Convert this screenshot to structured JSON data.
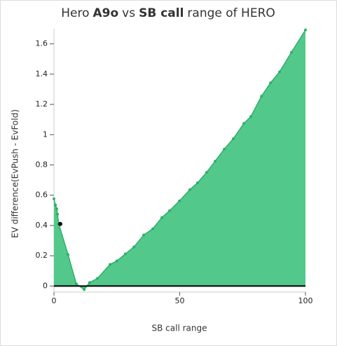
{
  "chart_data": {
    "type": "area",
    "title": [
      "Hero",
      "A9o",
      "vs",
      "SB call",
      "range of HERO"
    ],
    "title_bold": [
      false,
      true,
      false,
      true,
      false
    ],
    "x_label": "SB call range",
    "y_label": "EV difference(EvPush - EvFold)",
    "x": [
      0,
      0.6,
      1.1,
      1.4,
      1.9,
      5.6,
      8.9,
      12,
      14.2,
      17.3,
      22.3,
      25,
      28.4,
      31.8,
      35.7,
      39.3,
      42.9,
      46,
      49.9,
      54,
      57.1,
      60.7,
      64.1,
      67.7,
      71.3,
      75.5,
      78.3,
      82.5,
      86.1,
      89.7,
      94.4,
      100
    ],
    "series": [
      {
        "name": "EV difference",
        "color": "#52c98a",
        "line_color": "#2fae6a",
        "values": [
          0.576,
          0.535,
          0.51,
          0.475,
          0.41,
          0.207,
          0.014,
          -0.023,
          0.023,
          0.05,
          0.143,
          0.166,
          0.212,
          0.258,
          0.337,
          0.378,
          0.452,
          0.498,
          0.562,
          0.636,
          0.682,
          0.751,
          0.825,
          0.904,
          0.973,
          1.074,
          1.12,
          1.254,
          1.342,
          1.415,
          1.544,
          1.692
        ]
      }
    ],
    "highlight": {
      "x": 2.5,
      "y": 0.41,
      "color": "#111"
    },
    "xlim": [
      0,
      100
    ],
    "ylim": [
      -0.04,
      1.7
    ],
    "xticks": [
      0,
      50,
      100
    ],
    "yticks": [
      0,
      0.2,
      0.4,
      0.6,
      0.8,
      1,
      1.2,
      1.4,
      1.6
    ]
  }
}
